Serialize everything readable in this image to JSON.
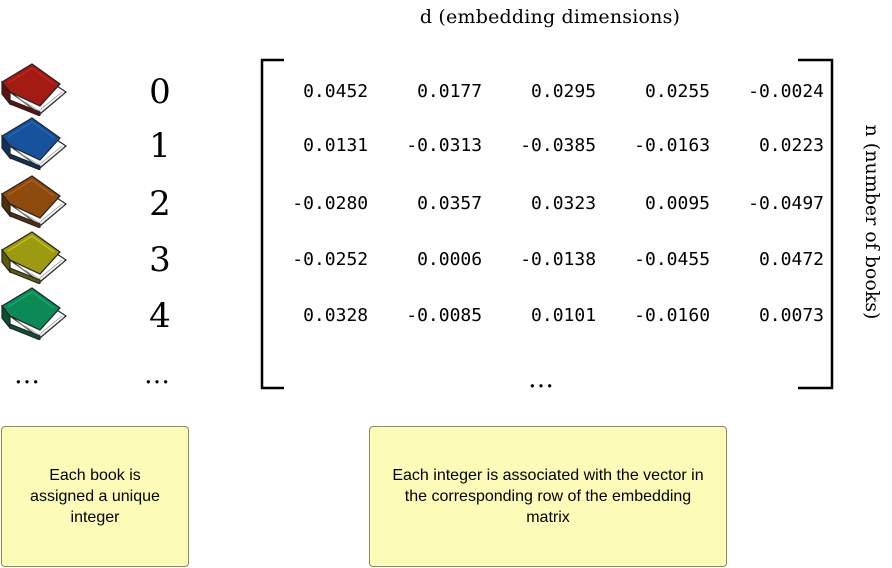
{
  "labels": {
    "columns_axis": "d (embedding dimensions)",
    "rows_axis": "n (number of books)"
  },
  "books": [
    {
      "index": "0",
      "color": "#a31b12"
    },
    {
      "index": "1",
      "color": "#17539d"
    },
    {
      "index": "2",
      "color": "#8e4b0d"
    },
    {
      "index": "3",
      "color": "#9c9a10"
    },
    {
      "index": "4",
      "color": "#0b8a55"
    }
  ],
  "ellipsis": {
    "books": "…",
    "indices": "…",
    "matrix": "…"
  },
  "matrix": {
    "rows": [
      [
        "0.0452",
        "0.0177",
        "0.0295",
        "0.0255",
        "-0.0024"
      ],
      [
        "0.0131",
        "-0.0313",
        "-0.0385",
        "-0.0163",
        "0.0223"
      ],
      [
        "-0.0280",
        "0.0357",
        "0.0323",
        "0.0095",
        "-0.0497"
      ],
      [
        "-0.0252",
        "0.0006",
        "-0.0138",
        "-0.0455",
        "0.0472"
      ],
      [
        "0.0328",
        "-0.0085",
        "0.0101",
        "-0.0160",
        "0.0073"
      ]
    ]
  },
  "notes": {
    "left": "Each book is assigned a unique integer",
    "right": "Each integer is associated with the vector in the corresponding row of the embedding matrix"
  },
  "colors": {
    "note_background": "#fcfbb7",
    "note_border": "#8a8a5a"
  }
}
